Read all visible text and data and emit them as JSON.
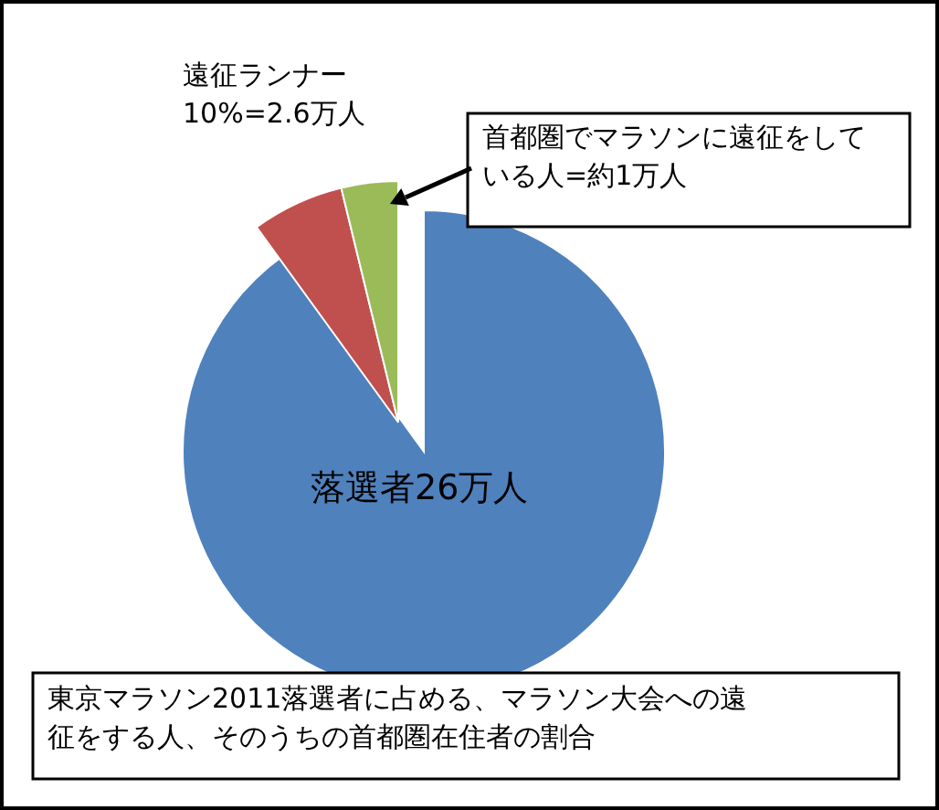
{
  "chart_data": {
    "type": "pie",
    "categories": [
      "落選者26万人",
      null,
      null
    ],
    "values": [
      90,
      6.2,
      3.8
    ],
    "colors": [
      "#4f81bd",
      "#c0504d",
      "#9bbb59"
    ],
    "annotations": [
      "遠征ランナー\n10%=2.6万人",
      "東京マラソン2011落選者に占める、マラソン大会への遠征をする人、そのうちの首都圏在住者の割合",
      "首都圏でマラソンに遠征をしている人=約1万人"
    ]
  }
}
